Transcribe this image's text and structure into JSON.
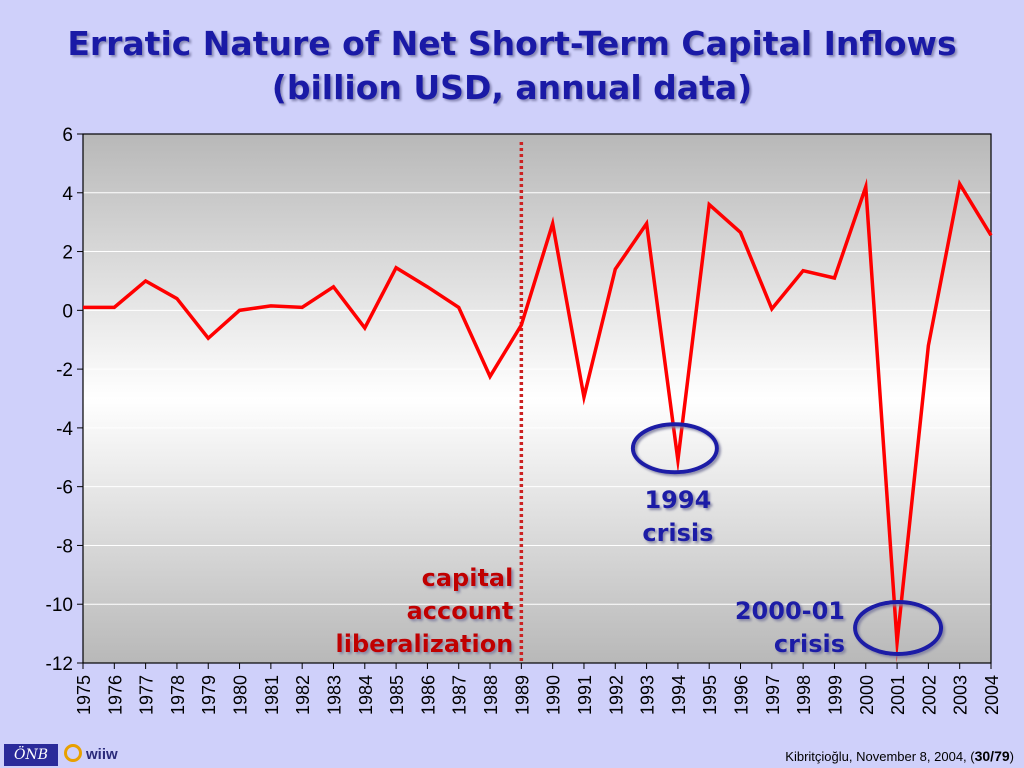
{
  "title": {
    "line1": "Erratic Nature of Net Short-Term Capital Inflows",
    "line2": "(billion USD, annual data)"
  },
  "chart_data": {
    "type": "line",
    "x": [
      1975,
      1976,
      1977,
      1978,
      1979,
      1980,
      1981,
      1982,
      1983,
      1984,
      1985,
      1986,
      1987,
      1988,
      1989,
      1990,
      1991,
      1992,
      1993,
      1994,
      1995,
      1996,
      1997,
      1998,
      1999,
      2000,
      2001,
      2002,
      2003,
      2004
    ],
    "series": [
      {
        "color": "#ff0000",
        "values": [
          0.1,
          0.1,
          1.0,
          0.4,
          -0.95,
          0.0,
          0.15,
          0.1,
          0.8,
          -0.6,
          1.45,
          0.8,
          0.1,
          -2.25,
          -0.5,
          2.95,
          -2.95,
          1.4,
          2.95,
          -5.1,
          3.6,
          2.65,
          0.05,
          1.35,
          1.1,
          4.2,
          -11.3,
          -1.2,
          4.3,
          2.55
        ]
      }
    ],
    "xlabel": "",
    "ylabel": "",
    "ylim": [
      -12,
      6
    ],
    "yticks": [
      "6",
      "4",
      "2",
      "0",
      "-2",
      "-4",
      "-6",
      "-8",
      "-10",
      "-12"
    ],
    "xticks": [
      "1975",
      "1976",
      "1977",
      "1978",
      "1979",
      "1980",
      "1981",
      "1982",
      "1983",
      "1984",
      "1985",
      "1986",
      "1987",
      "1988",
      "1989",
      "1990",
      "1991",
      "1992",
      "1993",
      "1994",
      "1995",
      "1996",
      "1997",
      "1998",
      "1999",
      "2000",
      "2001",
      "2002",
      "2003",
      "2004"
    ],
    "grid": true,
    "vertical_marker": {
      "x": 1989,
      "color": "#cc2222"
    },
    "annotations": [
      {
        "lines": [
          "capital",
          "account",
          "liberalization"
        ],
        "color": "#c00000"
      },
      {
        "lines": [
          "1994",
          "crisis"
        ],
        "color": "#1a1aa6",
        "circle_x": 1994
      },
      {
        "lines": [
          "2000-01",
          "crisis"
        ],
        "color": "#1a1aa6",
        "circle_x": 2001
      }
    ]
  },
  "footer": {
    "logo1": "ÖNB",
    "logo2": "wiiw",
    "citation": "Kibritçioğlu, November 8, 2004, (",
    "page": "30/79",
    "close": ")"
  },
  "colors": {
    "title": "#1a1aa6",
    "line": "#ff0000",
    "background": "#cfd0fa"
  }
}
